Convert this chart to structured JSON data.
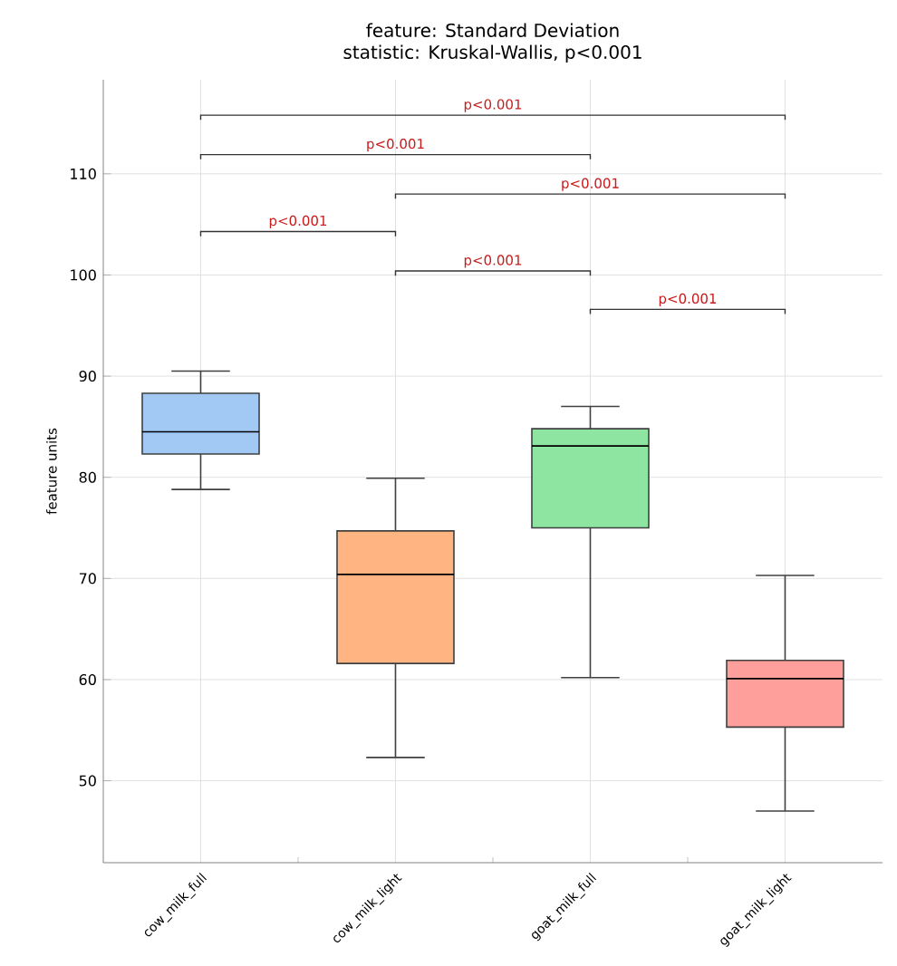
{
  "chart_data": {
    "type": "box",
    "title": "feature: Standard Deviation",
    "subtitle": "statistic: Kruskal-Wallis, p<0.001",
    "ylabel": "feature units",
    "categories": [
      "cow_milk_full",
      "cow_milk_light",
      "goat_milk_full",
      "goat_milk_light"
    ],
    "boxes": [
      {
        "low": 78.8,
        "q1": 82.3,
        "median": 84.5,
        "q3": 88.3,
        "high": 90.5
      },
      {
        "low": 52.3,
        "q1": 61.6,
        "median": 70.4,
        "q3": 74.7,
        "high": 79.9
      },
      {
        "low": 60.2,
        "q1": 75.0,
        "median": 83.1,
        "q3": 84.8,
        "high": 87.0
      },
      {
        "low": 47.0,
        "q1": 55.3,
        "median": 60.1,
        "q3": 61.9,
        "high": 70.3
      }
    ],
    "colors": [
      "#a1c9f4",
      "#ffb482",
      "#8de5a1",
      "#ff9f9b"
    ],
    "ylim": [
      41.9,
      119.3
    ],
    "yticks": [
      50,
      60,
      70,
      80,
      90,
      100,
      110
    ],
    "grid": true,
    "annotations": [
      "p<0.001",
      "p<0.001",
      "p<0.001",
      "p<0.001",
      "p<0.001",
      "p<0.001"
    ]
  }
}
